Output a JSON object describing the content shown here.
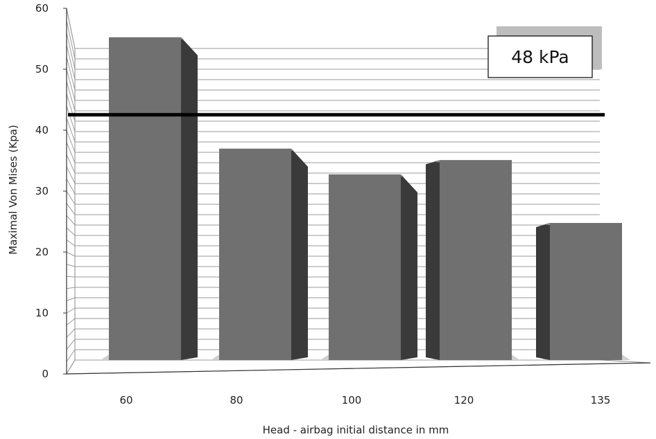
{
  "chart_data": {
    "type": "bar",
    "categories": [
      "60",
      "80",
      "100",
      "120",
      "135"
    ],
    "values": [
      56.5,
      37,
      32.5,
      35,
      24
    ],
    "xlabel": "Head - airbag initial distance in mm",
    "ylabel": "Maximal Von Mises (Kpa)",
    "ylim": [
      0,
      60
    ],
    "yticks": [
      "0",
      "10",
      "20",
      "30",
      "40",
      "50",
      "60"
    ],
    "grid": true,
    "style": "3d",
    "reference_line": {
      "value": 47.5,
      "label": "48 kPa"
    },
    "colors": {
      "bar_front": "#707070",
      "bar_side": "#3a3a3a",
      "bar_top": "#8a8a8a",
      "grid": "#9a9a9a",
      "reference": "#000000"
    }
  }
}
